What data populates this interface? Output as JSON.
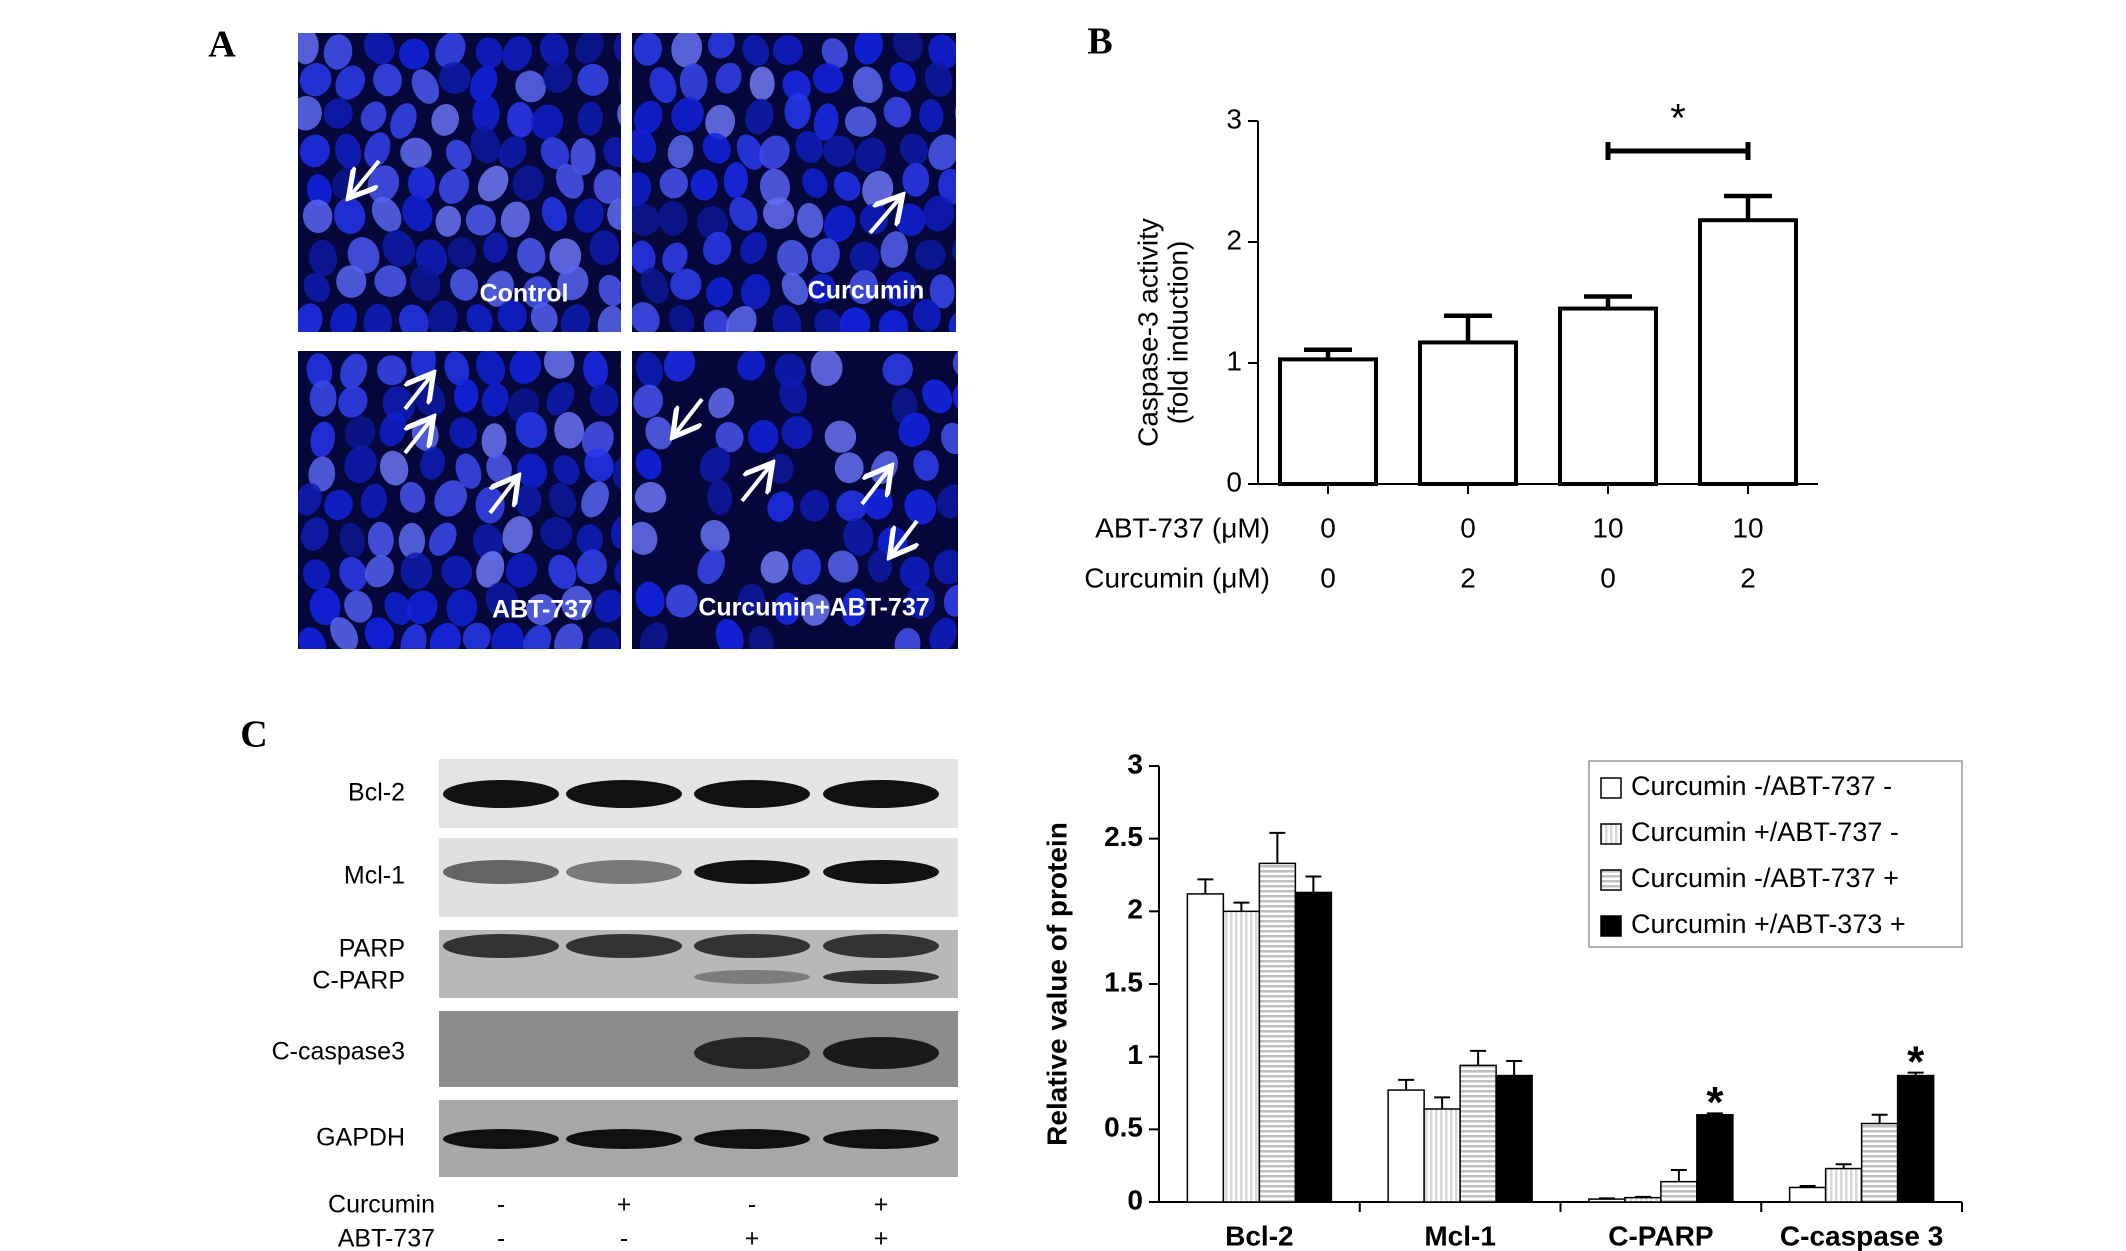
{
  "panels": {
    "a": "A",
    "b": "B",
    "c": "C"
  },
  "micrographs": [
    "Control",
    "Curcumin",
    "ABT-737",
    "Curcumin+ABT-737"
  ],
  "blot": {
    "rows": [
      "Bcl-2",
      "Mcl-1",
      "PARP",
      "C-PARP",
      "C-caspase3",
      "GAPDH"
    ],
    "treatments": [
      {
        "label": "Curcumin",
        "signs": [
          "-",
          "+",
          "-",
          "+"
        ]
      },
      {
        "label": "ABT-737",
        "signs": [
          "-",
          "-",
          "+",
          "+"
        ]
      }
    ]
  },
  "chart_data": [
    {
      "type": "bar",
      "ylabel": [
        "Caspase-3 activity",
        "(fold induction)"
      ],
      "category_rows": [
        {
          "label": "ABT-737 (μM)",
          "values": [
            "0",
            "0",
            "10",
            "10"
          ]
        },
        {
          "label": "Curcumin (μM)",
          "values": [
            "0",
            "2",
            "0",
            "2"
          ]
        }
      ],
      "values": [
        1.03,
        1.17,
        1.45,
        2.18
      ],
      "errors": [
        0.08,
        0.22,
        0.1,
        0.2
      ],
      "color": "#ffffff",
      "edgecolor": "#000000",
      "ylim": [
        0,
        3
      ],
      "yticks": [
        0,
        1,
        2,
        3
      ],
      "annotations": [
        {
          "text": "*",
          "between": [
            2,
            3
          ]
        }
      ]
    },
    {
      "type": "bar",
      "ylabel": "Relative value of protein",
      "categories": [
        "Bcl-2",
        "Mcl-1",
        "C-PARP",
        "C-caspase 3"
      ],
      "series": [
        {
          "name": "Curcumin -/ABT-737 -",
          "color": "#ffffff",
          "values": [
            2.12,
            0.77,
            0.02,
            0.1
          ],
          "errors": [
            0.1,
            0.07,
            0.005,
            0.01
          ]
        },
        {
          "name": "Curcumin +/ABT-737 -",
          "color": "#d9d9d9",
          "pattern": "vertical",
          "values": [
            2.0,
            0.64,
            0.03,
            0.23
          ],
          "errors": [
            0.06,
            0.08,
            0.005,
            0.03
          ]
        },
        {
          "name": "Curcumin -/ABT-737 +",
          "color": "#bfbfbf",
          "pattern": "horizontal",
          "values": [
            2.33,
            0.94,
            0.14,
            0.54
          ],
          "errors": [
            0.21,
            0.1,
            0.08,
            0.06
          ]
        },
        {
          "name": "Curcumin +/ABT-373 +",
          "color": "#000000",
          "values": [
            2.13,
            0.87,
            0.6,
            0.87
          ],
          "errors": [
            0.11,
            0.1,
            0.01,
            0.02
          ]
        }
      ],
      "edgecolor": "#000000",
      "ylim": [
        0,
        3
      ],
      "yticks": [
        0,
        0.5,
        1,
        1.5,
        2,
        2.5,
        3
      ],
      "legend": "upper right",
      "annotations": [
        {
          "text": "*",
          "category": "C-PARP"
        },
        {
          "text": "*",
          "category": "C-caspase 3"
        }
      ]
    }
  ]
}
